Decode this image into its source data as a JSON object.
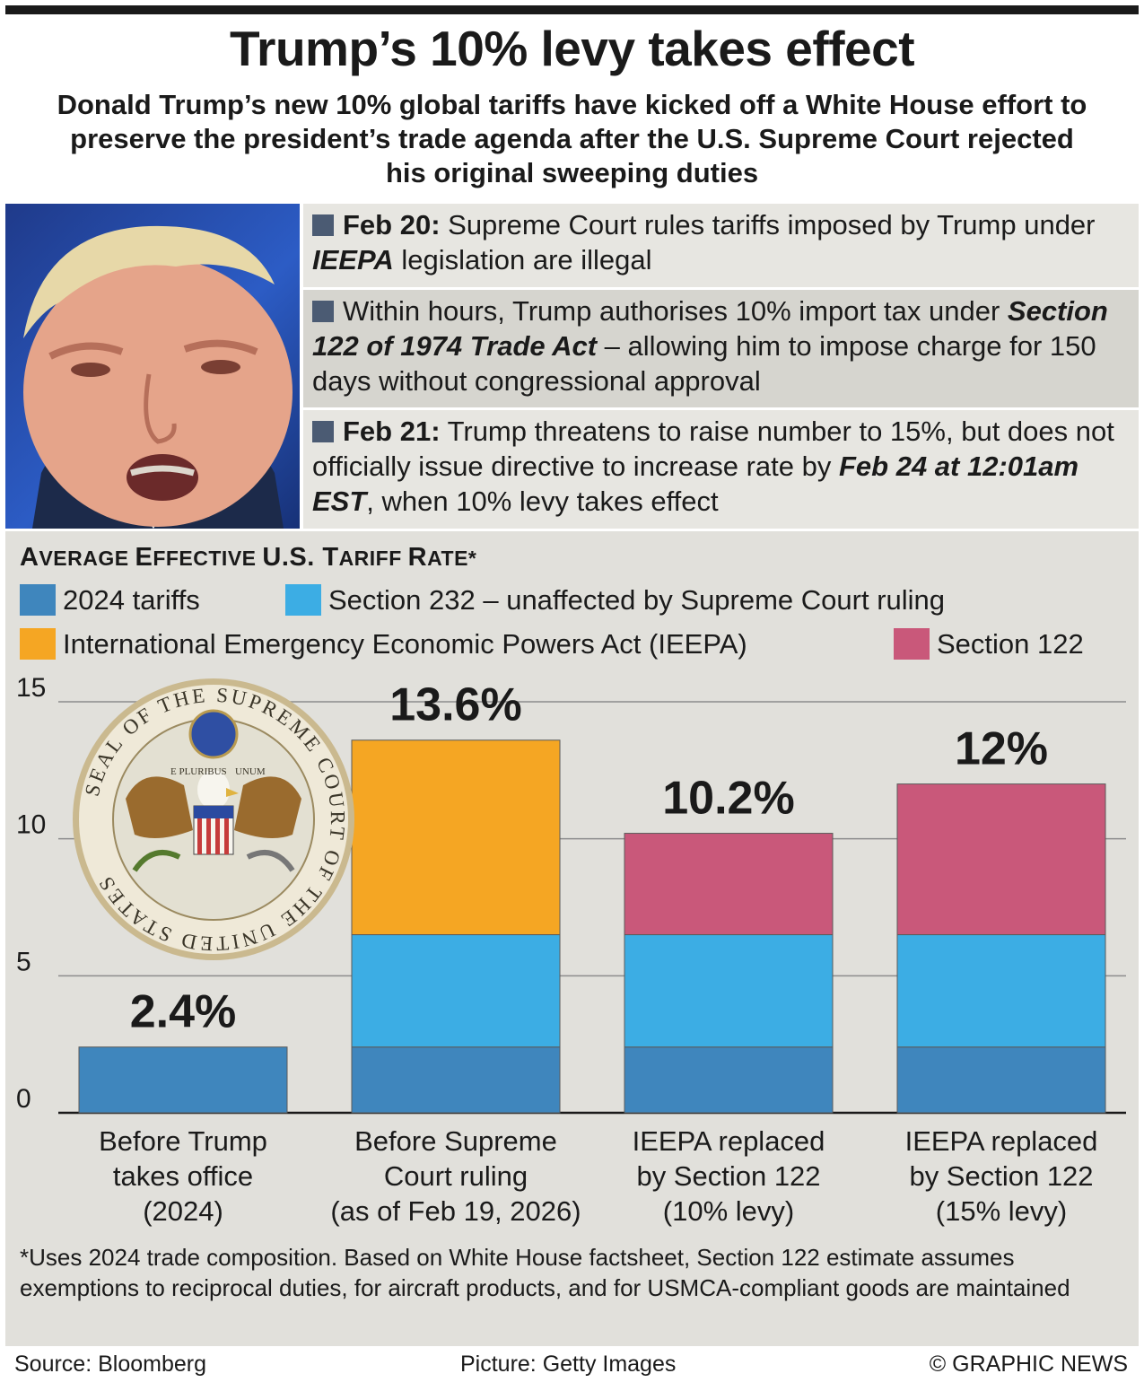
{
  "title": "Trump’s 10% levy takes effect",
  "subtitle": "Donald Trump’s new 10% global tariffs have kicked off a White House effort to preserve the president’s trade agenda after the U.S. Supreme Court rejected his original sweeping duties",
  "events": {
    "e1": {
      "date": "Feb 20:",
      "text_a": " Supreme Court rules tariffs imposed by Trump under ",
      "em": "IEEPA",
      "text_b": " legislation are illegal"
    },
    "e2": {
      "text_a": "Within hours, Trump authorises 10% import tax under ",
      "em": "Section 122 of 1974 Trade Act",
      "text_b": " – allowing him to impose charge for 150 days without congressional approval"
    },
    "e3": {
      "date": "Feb 21:",
      "text_a": " Trump threatens to raise number to 15%, but does not officially issue directive to increase rate by ",
      "em": "Feb 24 at 12:01am EST",
      "text_b": ", when 10% levy takes effect"
    }
  },
  "chart_title": {
    "a": "A",
    "b": "VERAGE ",
    "c": "E",
    "d": "FFECTIVE ",
    "e": "U.S. T",
    "f": "ARIFF ",
    "g": "R",
    "h": "ATE*"
  },
  "seal": {
    "text_top": "SEAL OF THE SUPREME COURT OF THE UNITED STATES",
    "motto_a": "E PLURIBUS",
    "motto_b": "UNUM"
  },
  "colors": {
    "tariffs_2024": "#3f86bd",
    "section_232": "#3cade4",
    "ieepa": "#f5a623",
    "section_122": "#c9587a"
  },
  "chart_data": {
    "type": "bar",
    "stacked": true,
    "title": "Average Effective U.S. Tariff Rate*",
    "ylim": [
      0,
      15
    ],
    "yticks": [
      "0",
      "5",
      "10",
      "15"
    ],
    "categories": [
      [
        "Before Trump",
        "takes office",
        "(2024)"
      ],
      [
        "Before Supreme",
        "Court ruling",
        "(as of Feb 19, 2026)"
      ],
      [
        "IEEPA replaced",
        "by Section 122",
        "(10% levy)"
      ],
      [
        "IEEPA replaced",
        "by Section 122",
        "(15% levy)"
      ]
    ],
    "series": [
      {
        "name": "2024 tariffs",
        "values": [
          2.4,
          2.4,
          2.4,
          2.4
        ]
      },
      {
        "name": "Section 232 – unaffected by Supreme Court ruling",
        "values": [
          0,
          4.1,
          4.1,
          4.1
        ]
      },
      {
        "name": "International Emergency Economic Powers Act (IEEPA)",
        "values": [
          0,
          7.1,
          0,
          0
        ]
      },
      {
        "name": "Section 122",
        "values": [
          0,
          0,
          3.7,
          5.5
        ]
      }
    ],
    "totals": [
      2.4,
      13.6,
      10.2,
      12.0
    ],
    "total_labels": [
      "2.4%",
      "13.6%",
      "10.2%",
      "12%"
    ]
  },
  "footnote": "*Uses 2024 trade composition. Based on White House factsheet, Section 122 estimate assumes exemptions to reciprocal duties, for aircraft products, and for USMCA-compliant goods are maintained",
  "footer": {
    "source": "Source: Bloomberg",
    "picture": "Picture: Getty Images",
    "credit": "© GRAPHIC NEWS"
  }
}
